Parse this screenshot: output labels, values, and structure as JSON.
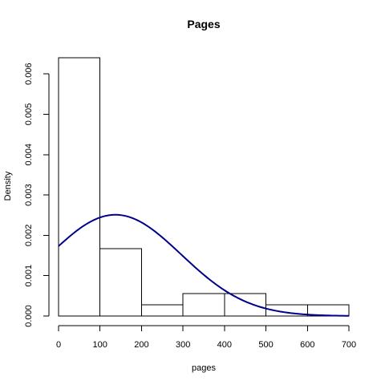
{
  "chart_data": {
    "type": "bar",
    "subtype": "histogram",
    "title": "Pages",
    "xlabel": "pages",
    "ylabel": "Density",
    "xlim": [
      0,
      700
    ],
    "ylim": [
      0,
      0.0064
    ],
    "x_ticks": [
      0,
      100,
      200,
      300,
      400,
      500,
      600,
      700
    ],
    "x_tick_labels": [
      "0",
      "100",
      "200",
      "300",
      "400",
      "500",
      "600",
      "700"
    ],
    "y_ticks": [
      0,
      0.001,
      0.002,
      0.003,
      0.004,
      0.005,
      0.006
    ],
    "y_tick_labels": [
      "0.000",
      "0.001",
      "0.002",
      "0.003",
      "0.004",
      "0.005",
      "0.006"
    ],
    "bins": [
      {
        "x0": 0,
        "x1": 100,
        "density": 0.0064
      },
      {
        "x0": 100,
        "x1": 200,
        "density": 0.00167
      },
      {
        "x0": 200,
        "x1": 300,
        "density": 0.00028
      },
      {
        "x0": 300,
        "x1": 400,
        "density": 0.00056
      },
      {
        "x0": 400,
        "x1": 500,
        "density": 0.00056
      },
      {
        "x0": 500,
        "x1": 600,
        "density": 0.00028
      },
      {
        "x0": 600,
        "x1": 700,
        "density": 0.00028
      }
    ],
    "density_curve": {
      "distribution": "normal",
      "mean": 137,
      "sd": 159,
      "color": "#00008b"
    },
    "grid": false,
    "bar_fill": "#ffffff",
    "bar_stroke": "#000000"
  }
}
